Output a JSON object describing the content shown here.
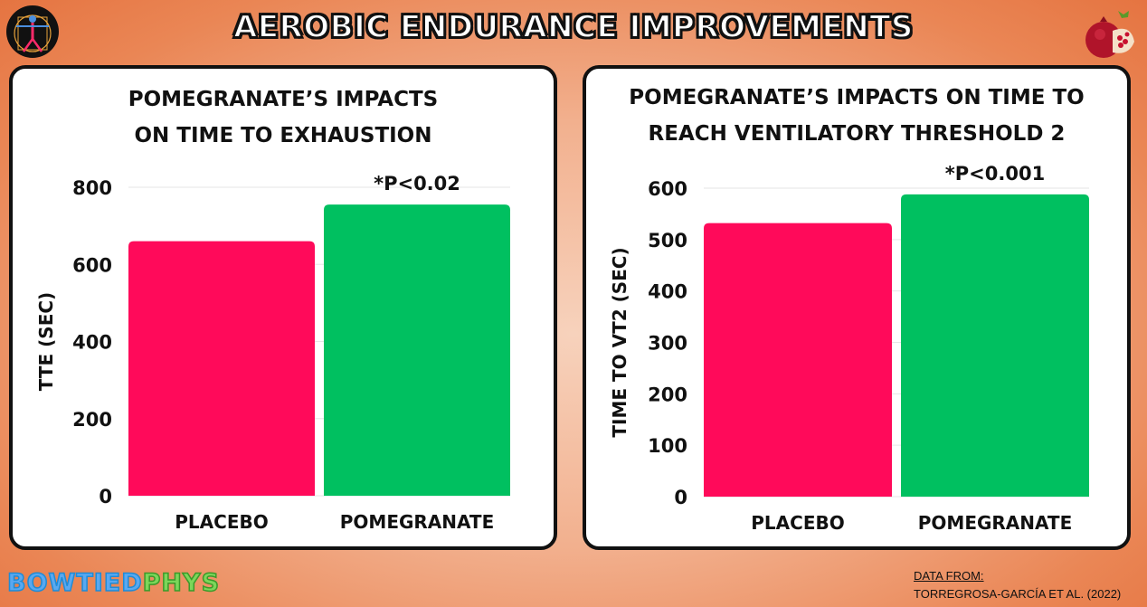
{
  "title": "AEROBIC ENDURANCE IMPROVEMENTS",
  "brand": {
    "part1": "BOWTIED",
    "part2": "PHYS"
  },
  "credit": {
    "line1": "DATA FROM:",
    "line2": "TORREGROSA-GARCÍA ET AL.  (2022)"
  },
  "icons": {
    "left": "vitruvian-man-logo-icon",
    "right": "pomegranate-icon"
  },
  "colors": {
    "placebo": "#ff0a5a",
    "pomegranate": "#00c060",
    "grid": "#e6e6e6"
  },
  "chart_data": [
    {
      "type": "bar",
      "title_lines": [
        "POMEGRANATE’S IMPACTS",
        "ON TIME TO EXHAUSTION"
      ],
      "categories": [
        "PLACEBO",
        "POMEGRANATE"
      ],
      "values": [
        660,
        755
      ],
      "ylabel": "TTE (SEC)",
      "ylim": [
        0,
        800
      ],
      "yticks": [
        0,
        200,
        400,
        600,
        800
      ],
      "annotation": {
        "text": "*P<0.02",
        "category": "POMEGRANATE"
      },
      "grid": true
    },
    {
      "type": "bar",
      "title_lines": [
        "POMEGRANATE’S IMPACTS ON TIME TO",
        "REACH VENTILATORY THRESHOLD 2"
      ],
      "categories": [
        "PLACEBO",
        "POMEGRANATE"
      ],
      "values": [
        532,
        588
      ],
      "ylabel": "TIME TO VT2 (SEC)",
      "ylim": [
        0,
        600
      ],
      "yticks": [
        0,
        100,
        200,
        300,
        400,
        500,
        600
      ],
      "annotation": {
        "text": "*P<0.001",
        "category": "POMEGRANATE"
      },
      "grid": true
    }
  ]
}
